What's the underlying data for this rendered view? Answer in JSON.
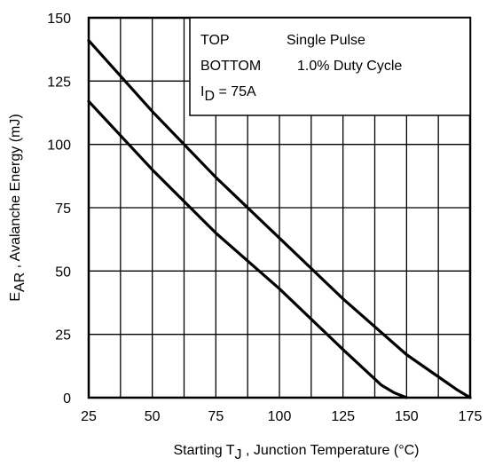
{
  "chart_data": {
    "type": "line",
    "xlabel_pre": "Starting T",
    "xlabel_sub": "J",
    "xlabel_post": " , Junction Temperature (°C)",
    "ylabel_pre": "E",
    "ylabel_sub": "AR",
    "ylabel_post": " , Avalanche Energy (mJ)",
    "xlim": [
      25,
      175
    ],
    "ylim": [
      0,
      150
    ],
    "x_ticks": [
      "25",
      "50",
      "75",
      "100",
      "125",
      "150",
      "175"
    ],
    "y_ticks": [
      "0",
      "25",
      "50",
      "75",
      "100",
      "125",
      "150"
    ],
    "grid": true,
    "legend_position": "top-right",
    "legend": {
      "line1_left": "TOP",
      "line1_right": "Single Pulse",
      "line2_left": "BOTTOM",
      "line2_right": "1.0% Duty Cycle",
      "line3_pre": "I",
      "line3_sub": "D",
      "line3_post": " = 75A"
    },
    "series": [
      {
        "x": [
          25,
          50,
          75,
          100,
          125,
          150,
          160,
          170,
          175
        ],
        "y": [
          141,
          113,
          87,
          63,
          39,
          17,
          10,
          3,
          0
        ]
      },
      {
        "x": [
          25,
          50,
          75,
          100,
          125,
          140,
          145,
          150
        ],
        "y": [
          117,
          90,
          65,
          43,
          19,
          5,
          2,
          0
        ]
      }
    ]
  }
}
